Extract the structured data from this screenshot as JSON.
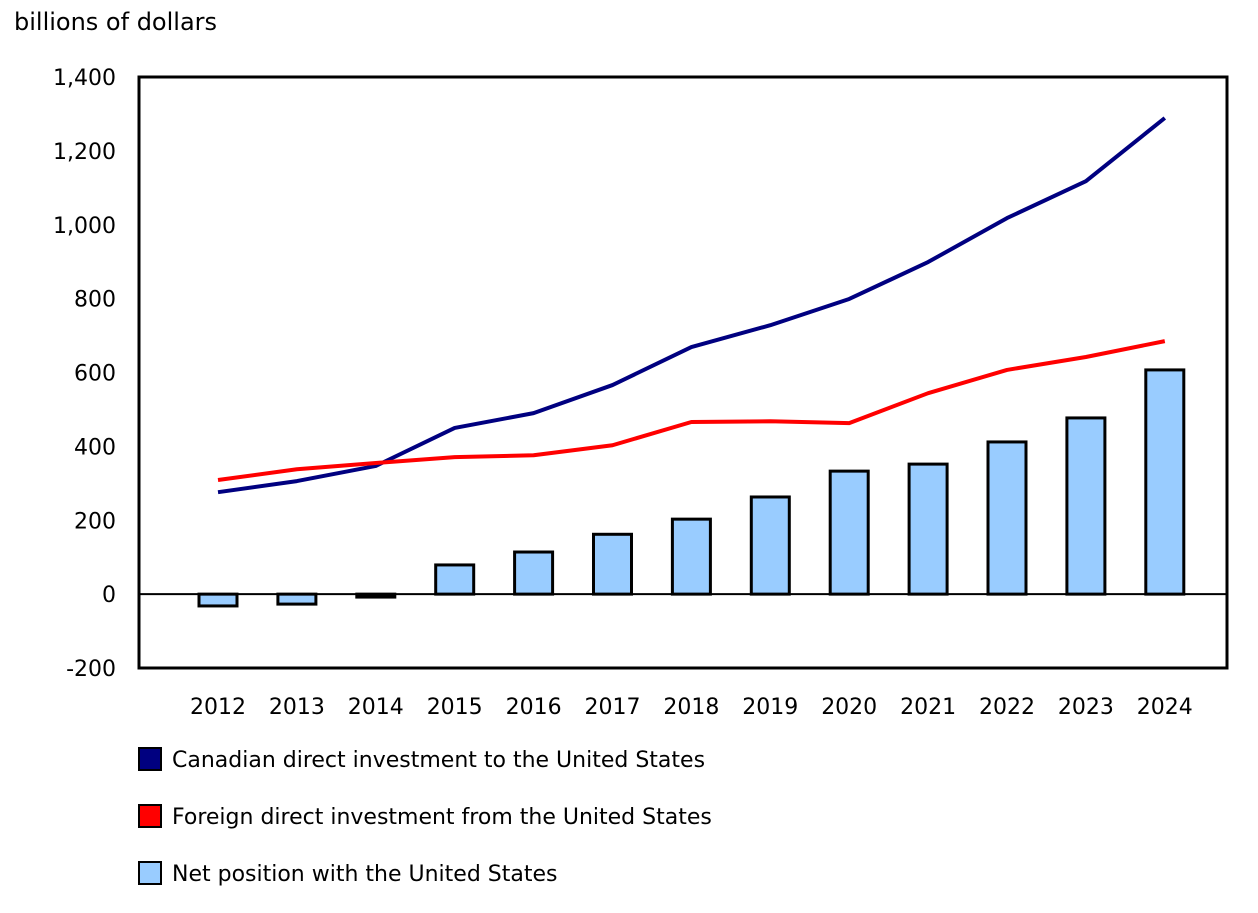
{
  "chart_data": {
    "type": "bar+line",
    "ylabel": "billions of dollars",
    "ylim": [
      -200,
      1400
    ],
    "yticks": [
      -200,
      0,
      200,
      400,
      600,
      800,
      1000,
      1200,
      1400
    ],
    "ytick_labels": [
      "-200",
      "0",
      "200",
      "400",
      "600",
      "800",
      "1,000",
      "1,200",
      "1,400"
    ],
    "categories": [
      "2012",
      "2013",
      "2014",
      "2015",
      "2016",
      "2017",
      "2018",
      "2019",
      "2020",
      "2021",
      "2022",
      "2023",
      "2024"
    ],
    "grid": false,
    "legend_placement": "bottom",
    "series": [
      {
        "name": "Canadian direct investment to the United States",
        "type": "line",
        "color": "#000080",
        "values": [
          276,
          306,
          347,
          450,
          490,
          566,
          669,
          728,
          799,
          899,
          1018,
          1118,
          1289
        ]
      },
      {
        "name": "Foreign direct investment from the United States",
        "type": "line",
        "color": "#ff0000",
        "values": [
          309,
          338,
          355,
          371,
          376,
          403,
          466,
          468,
          463,
          544,
          607,
          642,
          685
        ]
      },
      {
        "name": "Net position with the United States",
        "type": "bar",
        "color": "#99ccff",
        "values": [
          -32,
          -27,
          -8,
          79,
          114,
          162,
          203,
          263,
          333,
          352,
          412,
          477,
          607
        ]
      }
    ]
  }
}
